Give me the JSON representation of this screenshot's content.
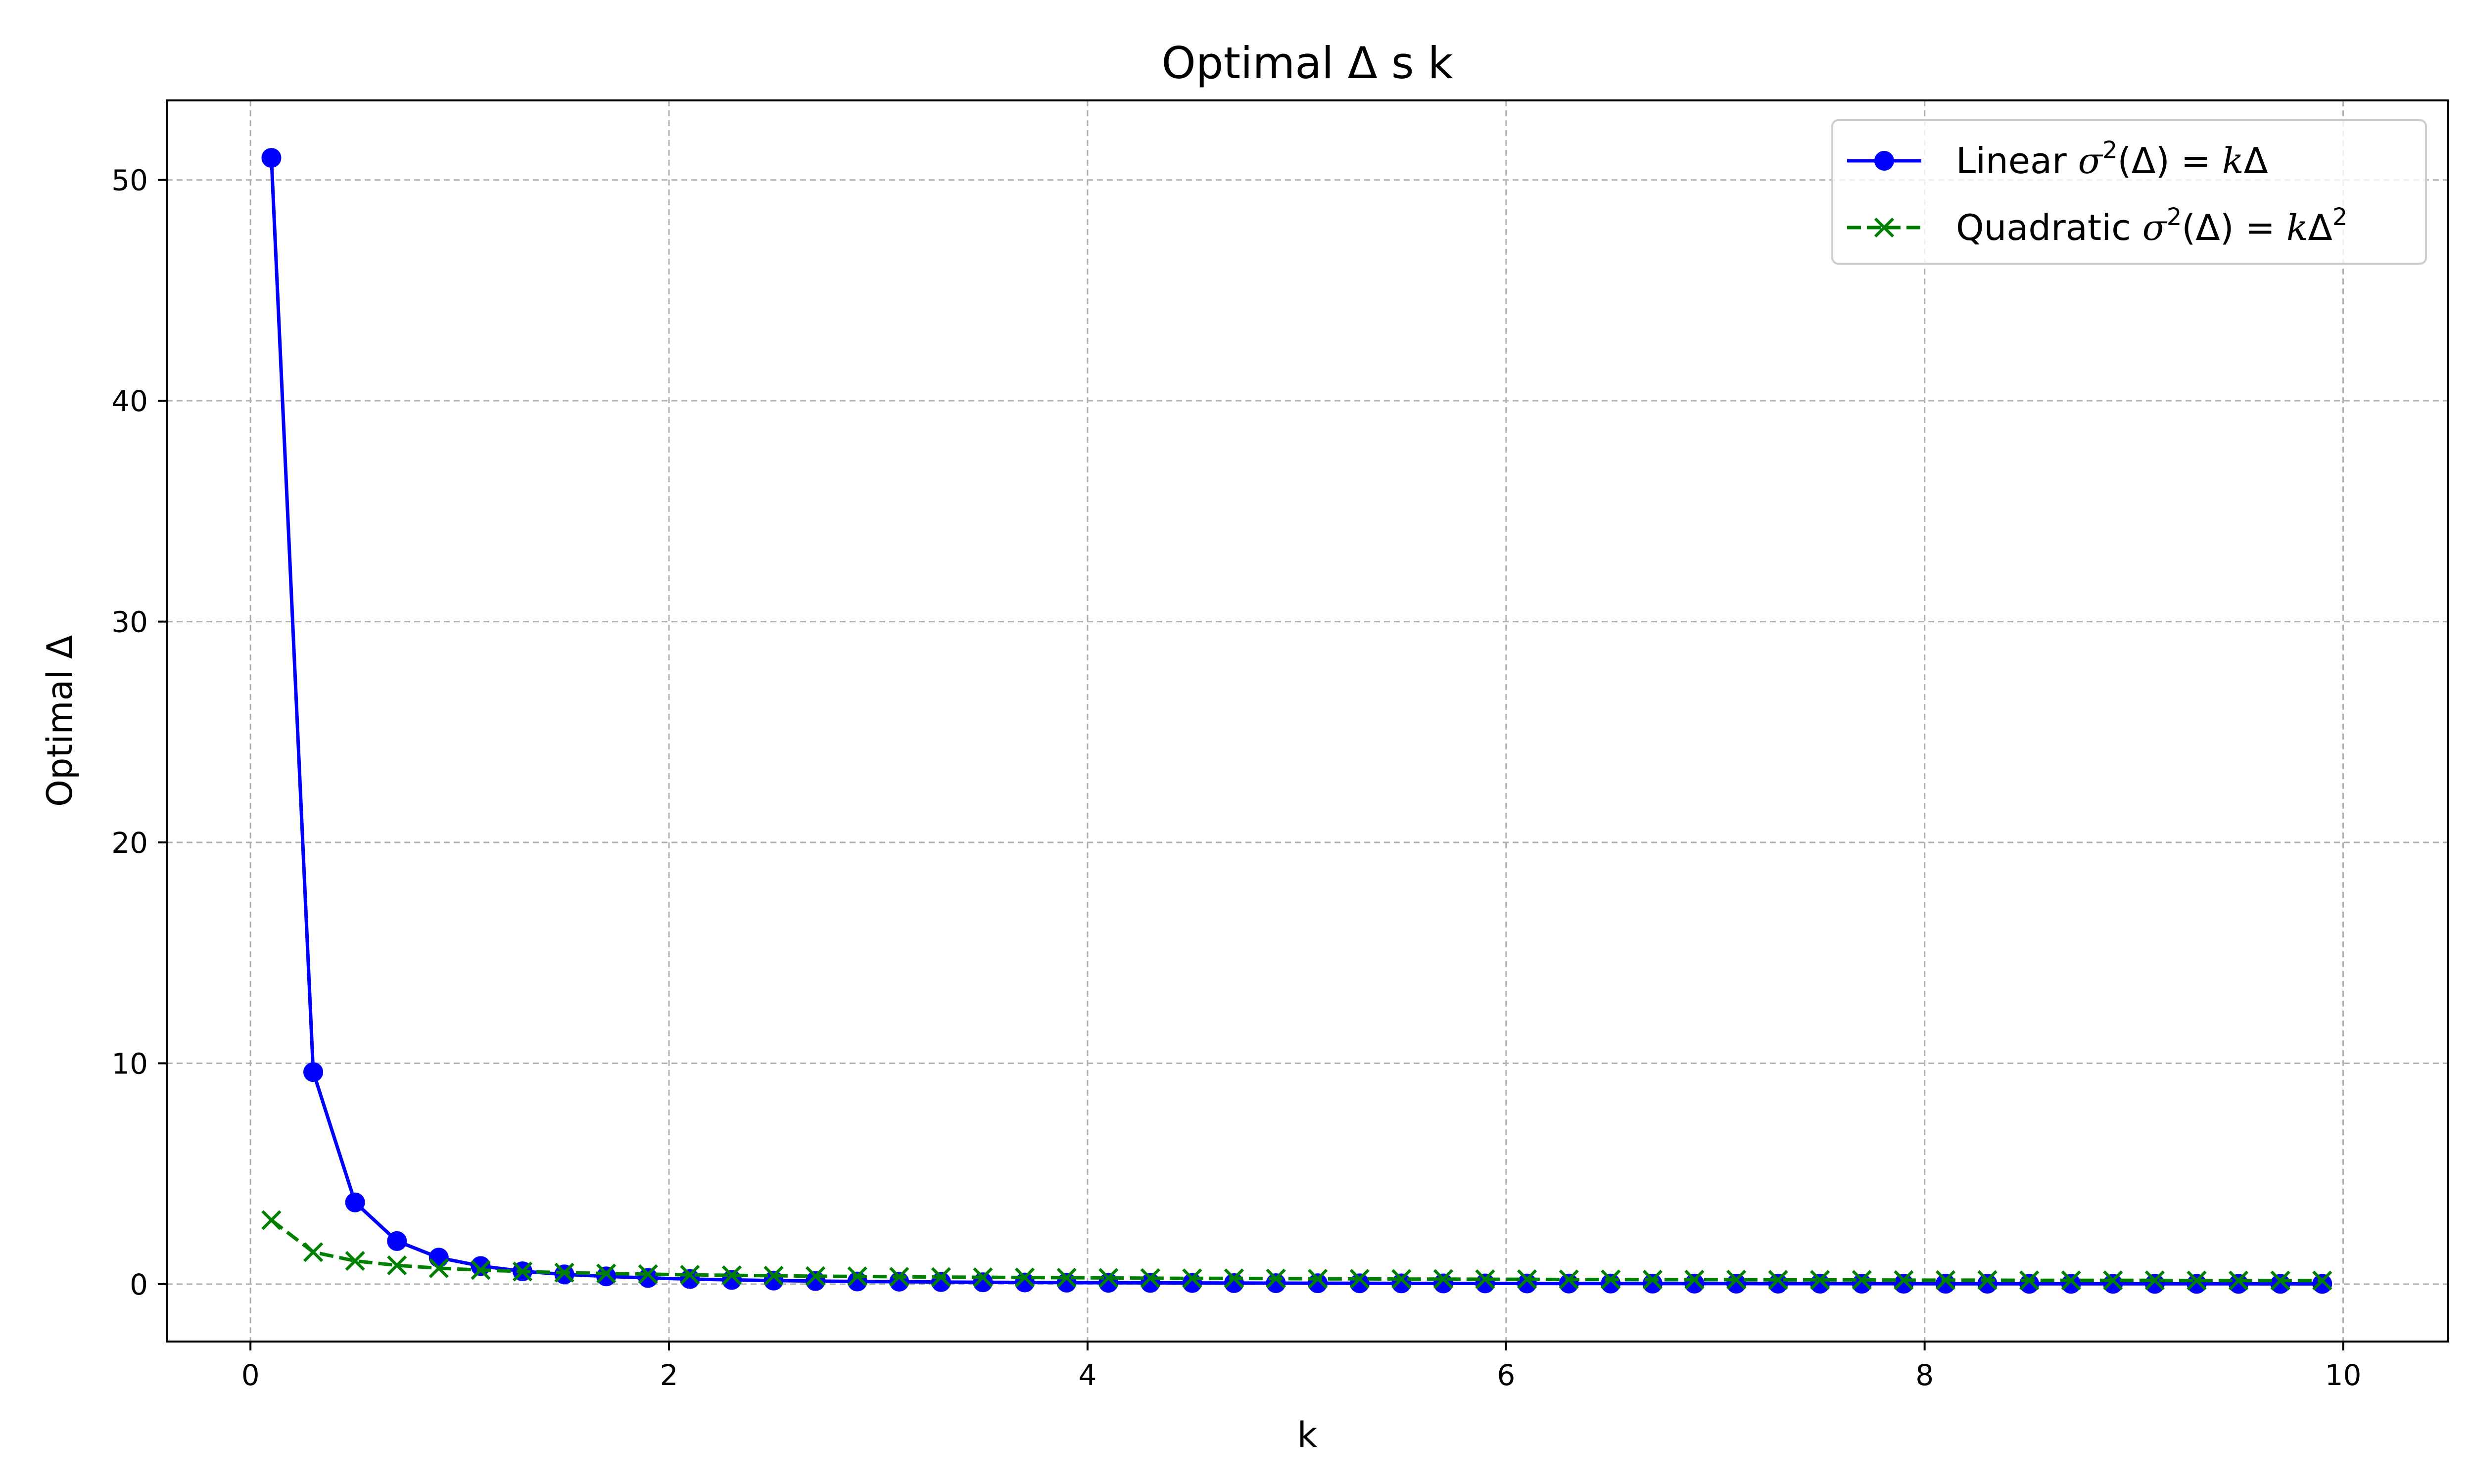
{
  "chart_data": {
    "type": "line",
    "title": "Optimal Δ s k",
    "xlabel": "k",
    "ylabel": "Optimal Δ",
    "xlim": [
      -0.4,
      10.5
    ],
    "ylim": [
      -2.6,
      53.6
    ],
    "xticks": [
      0,
      2,
      4,
      6,
      8,
      10
    ],
    "yticks": [
      0,
      10,
      20,
      30,
      40,
      50
    ],
    "grid": true,
    "legend_position": "top-right",
    "x": [
      0.1,
      0.3,
      0.5,
      0.7,
      0.9,
      1.1,
      1.3,
      1.5,
      1.7,
      1.9,
      2.1,
      2.3,
      2.5,
      2.7,
      2.9,
      3.1,
      3.3,
      3.5,
      3.7,
      3.9,
      4.1,
      4.3,
      4.5,
      4.7,
      4.9,
      5.1,
      5.3,
      5.5,
      5.7,
      5.9,
      6.1,
      6.3,
      6.5,
      6.7,
      6.9,
      7.1,
      7.3,
      7.5,
      7.7,
      7.9,
      8.1,
      8.3,
      8.5,
      8.7,
      8.9,
      9.1,
      9.3,
      9.5,
      9.7,
      9.9
    ],
    "series": [
      {
        "name": "Linear σ²(Δ) = kΔ",
        "color": "#0000ff",
        "line_style": "solid",
        "marker": "circle",
        "values": [
          51.0,
          9.6,
          3.7,
          1.95,
          1.2,
          0.82,
          0.58,
          0.44,
          0.35,
          0.28,
          0.23,
          0.19,
          0.16,
          0.14,
          0.12,
          0.11,
          0.095,
          0.084,
          0.075,
          0.068,
          0.061,
          0.056,
          0.051,
          0.047,
          0.043,
          0.04,
          0.037,
          0.035,
          0.033,
          0.031,
          0.029,
          0.027,
          0.026,
          0.024,
          0.023,
          0.022,
          0.021,
          0.02,
          0.019,
          0.018,
          0.017,
          0.017,
          0.016,
          0.015,
          0.015,
          0.014,
          0.013,
          0.013,
          0.012,
          0.012
        ]
      },
      {
        "name": "Quadratic σ²(Δ) = kΔ²",
        "color": "#008000",
        "line_style": "dashed",
        "marker": "x",
        "values": [
          2.9,
          1.45,
          1.05,
          0.85,
          0.72,
          0.64,
          0.57,
          0.52,
          0.48,
          0.45,
          0.42,
          0.4,
          0.38,
          0.36,
          0.35,
          0.33,
          0.32,
          0.31,
          0.3,
          0.29,
          0.28,
          0.27,
          0.26,
          0.26,
          0.25,
          0.24,
          0.24,
          0.23,
          0.23,
          0.22,
          0.22,
          0.21,
          0.21,
          0.2,
          0.2,
          0.2,
          0.19,
          0.19,
          0.19,
          0.18,
          0.18,
          0.18,
          0.17,
          0.17,
          0.17,
          0.17,
          0.16,
          0.16,
          0.16,
          0.16
        ]
      }
    ]
  }
}
